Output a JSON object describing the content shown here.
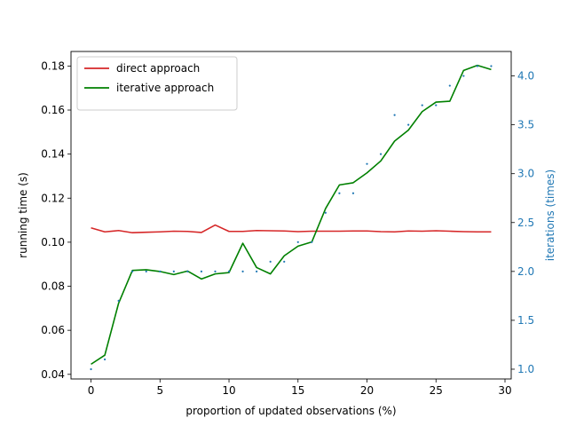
{
  "chart_data": {
    "type": "line",
    "xlabel": "proportion of updated observations (%)",
    "ylabel": "running time (s)",
    "y2label": "iterations (times)",
    "xlim": [
      -1.45,
      30.45
    ],
    "ylim": [
      0.0379,
      0.1866
    ],
    "y2lim": [
      0.9,
      4.25
    ],
    "x_ticks": [
      "0",
      "5",
      "10",
      "15",
      "20",
      "25",
      "30"
    ],
    "y_ticks": [
      "0.04",
      "0.06",
      "0.08",
      "0.10",
      "0.12",
      "0.14",
      "0.16",
      "0.18"
    ],
    "y2_ticks": [
      "1.0",
      "1.5",
      "2.0",
      "2.5",
      "3.0",
      "3.5",
      "4.0"
    ],
    "legend_position": "upper-left",
    "x": [
      0,
      1,
      2,
      3,
      4,
      5,
      6,
      7,
      8,
      9,
      10,
      11,
      12,
      13,
      14,
      15,
      16,
      17,
      18,
      19,
      20,
      21,
      22,
      23,
      24,
      25,
      26,
      27,
      28,
      29
    ],
    "series": [
      {
        "name": "direct approach",
        "color": "#d62728",
        "axis": "left",
        "style": "line",
        "values": [
          0.1065,
          0.1047,
          0.1053,
          0.1043,
          0.1045,
          0.1047,
          0.105,
          0.1049,
          0.1044,
          0.1078,
          0.1049,
          0.1049,
          0.1053,
          0.1052,
          0.1051,
          0.1048,
          0.105,
          0.105,
          0.105,
          0.1051,
          0.1051,
          0.1048,
          0.1047,
          0.1051,
          0.105,
          0.1052,
          0.105,
          0.1048,
          0.1047,
          0.1047
        ]
      },
      {
        "name": "iterative approach",
        "color": "#008000",
        "axis": "left",
        "style": "line",
        "values": [
          0.0446,
          0.0487,
          0.0723,
          0.0872,
          0.0875,
          0.0867,
          0.0853,
          0.0869,
          0.0833,
          0.0856,
          0.0862,
          0.0995,
          0.0885,
          0.0856,
          0.0938,
          0.0982,
          0.1001,
          0.1153,
          0.126,
          0.127,
          0.1315,
          0.1369,
          0.1459,
          0.1509,
          0.1593,
          0.1636,
          0.164,
          0.178,
          0.1803,
          0.1784
        ]
      },
      {
        "name": "",
        "color": "#1f77b4",
        "axis": "right",
        "style": "points",
        "values": [
          1.0,
          1.1,
          1.7,
          2.0,
          2.0,
          2.0,
          2.0,
          2.0,
          2.0,
          2.0,
          2.0,
          2.0,
          2.0,
          2.1,
          2.1,
          2.3,
          2.3,
          2.6,
          2.8,
          2.8,
          3.1,
          3.2,
          3.6,
          3.5,
          3.7,
          3.7,
          3.9,
          4.0,
          4.1,
          4.1
        ]
      }
    ]
  }
}
